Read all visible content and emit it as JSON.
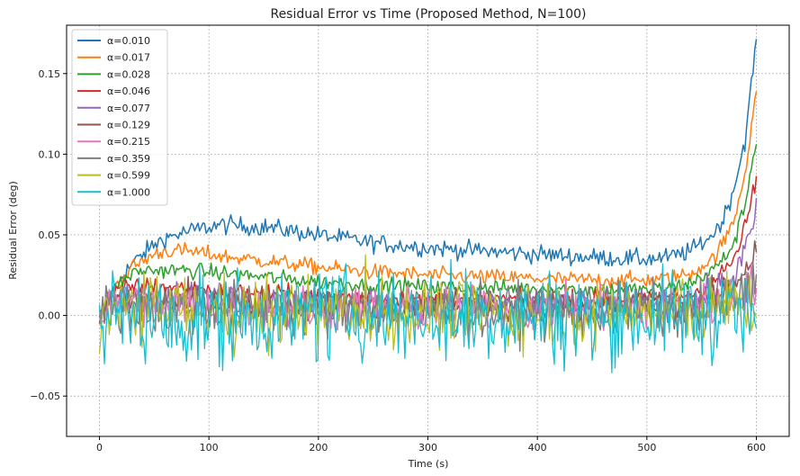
{
  "chart_data": {
    "type": "line",
    "title": "Residual Error vs Time (Proposed Method, N=100)",
    "xlabel": "Time (s)",
    "ylabel": "Residual Error (deg)",
    "xlim": [
      -30,
      630
    ],
    "ylim": [
      -0.075,
      0.18
    ],
    "grid": true,
    "legend_position": "top-left",
    "xticks": [
      0,
      100,
      200,
      300,
      400,
      500,
      600
    ],
    "xtick_labels": [
      "0",
      "100",
      "200",
      "300",
      "400",
      "500",
      "600"
    ],
    "yticks": [
      -0.05,
      0.0,
      0.05,
      0.1,
      0.15
    ],
    "ytick_labels": [
      "−0.05",
      "0.00",
      "0.05",
      "0.10",
      "0.15"
    ],
    "series": [
      {
        "name": "α=0.010",
        "color": "#1f77b4",
        "noise": 0.004,
        "x": [
          0,
          5,
          10,
          15,
          20,
          30,
          40,
          50,
          60,
          80,
          100,
          110,
          120,
          140,
          150,
          200,
          250,
          300,
          350,
          400,
          450,
          500,
          520,
          540,
          560,
          570,
          580,
          590,
          595,
          600
        ],
        "y": [
          0.0,
          0.003,
          0.012,
          0.018,
          0.024,
          0.032,
          0.038,
          0.044,
          0.048,
          0.052,
          0.055,
          0.056,
          0.056,
          0.055,
          0.055,
          0.05,
          0.045,
          0.042,
          0.04,
          0.038,
          0.036,
          0.035,
          0.036,
          0.04,
          0.05,
          0.06,
          0.08,
          0.11,
          0.14,
          0.172
        ]
      },
      {
        "name": "α=0.017",
        "color": "#ff7f0e",
        "noise": 0.0035,
        "x": [
          0,
          5,
          10,
          15,
          20,
          30,
          40,
          50,
          60,
          80,
          100,
          120,
          150,
          200,
          250,
          300,
          350,
          400,
          450,
          500,
          520,
          540,
          560,
          570,
          580,
          590,
          595,
          600
        ],
        "y": [
          0.0,
          0.003,
          0.012,
          0.018,
          0.022,
          0.03,
          0.034,
          0.038,
          0.04,
          0.04,
          0.038,
          0.036,
          0.034,
          0.03,
          0.027,
          0.025,
          0.024,
          0.023,
          0.022,
          0.022,
          0.023,
          0.026,
          0.035,
          0.045,
          0.06,
          0.09,
          0.115,
          0.142
        ]
      },
      {
        "name": "α=0.028",
        "color": "#2ca02c",
        "noise": 0.0035,
        "x": [
          0,
          5,
          10,
          15,
          20,
          30,
          40,
          50,
          60,
          80,
          100,
          150,
          200,
          250,
          300,
          350,
          400,
          450,
          500,
          520,
          540,
          560,
          570,
          580,
          590,
          595,
          600
        ],
        "y": [
          0.0,
          0.003,
          0.012,
          0.018,
          0.021,
          0.026,
          0.028,
          0.028,
          0.028,
          0.028,
          0.027,
          0.024,
          0.021,
          0.019,
          0.018,
          0.017,
          0.017,
          0.016,
          0.016,
          0.017,
          0.02,
          0.028,
          0.035,
          0.045,
          0.07,
          0.09,
          0.11
        ]
      },
      {
        "name": "α=0.046",
        "color": "#d62728",
        "noise": 0.004,
        "x": [
          0,
          10,
          20,
          30,
          50,
          100,
          200,
          300,
          400,
          500,
          540,
          560,
          580,
          590,
          600
        ],
        "y": [
          0.0,
          0.012,
          0.016,
          0.018,
          0.018,
          0.016,
          0.012,
          0.01,
          0.01,
          0.01,
          0.013,
          0.02,
          0.035,
          0.055,
          0.085
        ]
      },
      {
        "name": "α=0.077",
        "color": "#9467bd",
        "noise": 0.007,
        "x": [
          0,
          10,
          20,
          50,
          100,
          200,
          300,
          400,
          500,
          540,
          560,
          580,
          590,
          600
        ],
        "y": [
          0.0,
          0.01,
          0.012,
          0.012,
          0.01,
          0.008,
          0.007,
          0.007,
          0.007,
          0.009,
          0.014,
          0.025,
          0.04,
          0.062
        ]
      },
      {
        "name": "α=0.129",
        "color": "#8c564b",
        "noise": 0.008,
        "x": [
          0,
          10,
          20,
          50,
          100,
          200,
          300,
          400,
          500,
          540,
          560,
          580,
          590,
          600
        ],
        "y": [
          0.0,
          0.008,
          0.01,
          0.009,
          0.008,
          0.006,
          0.005,
          0.005,
          0.005,
          0.006,
          0.01,
          0.02,
          0.03,
          0.042
        ]
      },
      {
        "name": "α=0.215",
        "color": "#e377c2",
        "noise": 0.01,
        "x": [
          0,
          10,
          20,
          50,
          100,
          200,
          300,
          400,
          500,
          560,
          580,
          600
        ],
        "y": [
          0.0,
          0.006,
          0.008,
          0.007,
          0.006,
          0.004,
          0.004,
          0.004,
          0.004,
          0.006,
          0.012,
          0.02
        ]
      },
      {
        "name": "α=0.359",
        "color": "#7f7f7f",
        "noise": 0.012,
        "x": [
          0,
          10,
          20,
          50,
          100,
          200,
          300,
          400,
          500,
          560,
          580,
          600
        ],
        "y": [
          0.0,
          0.005,
          0.006,
          0.005,
          0.004,
          0.003,
          0.003,
          0.003,
          0.003,
          0.005,
          0.01,
          0.02
        ]
      },
      {
        "name": "α=0.599",
        "color": "#bcbd22",
        "noise": 0.015,
        "x": [
          0,
          10,
          20,
          50,
          100,
          200,
          300,
          400,
          500,
          560,
          580,
          600
        ],
        "y": [
          0.0,
          0.004,
          0.004,
          0.004,
          0.003,
          0.002,
          0.002,
          0.002,
          0.002,
          0.003,
          0.005,
          0.008
        ]
      },
      {
        "name": "α=1.000",
        "color": "#17becf",
        "noise": 0.02,
        "x": [
          0,
          10,
          50,
          60,
          100,
          200,
          300,
          400,
          500,
          600
        ],
        "y": [
          0.0,
          0.0,
          0.0,
          -0.01,
          0.0,
          0.0,
          0.0,
          0.0,
          0.0,
          0.0
        ]
      }
    ]
  }
}
